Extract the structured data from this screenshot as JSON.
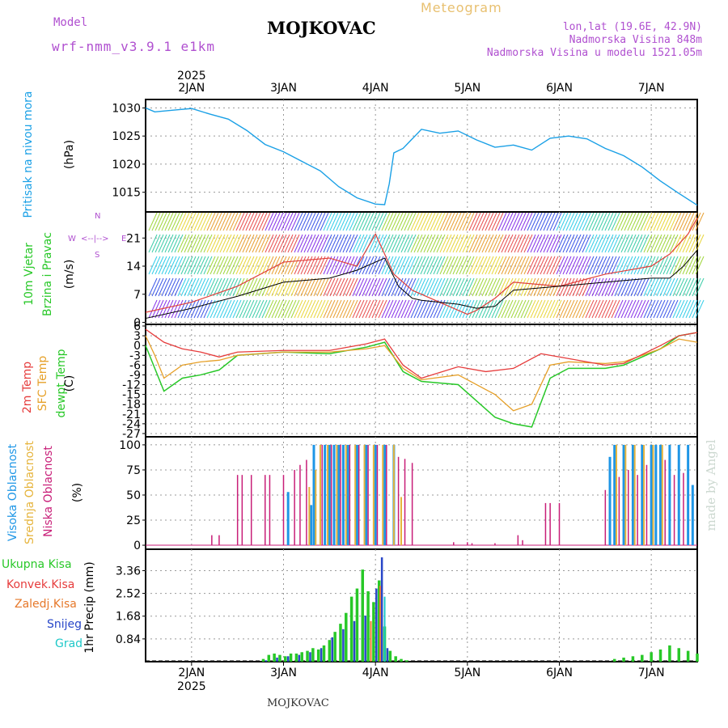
{
  "header": {
    "model_label": "Model",
    "model_name": "wrf-nmm_v3.9.1  e1km",
    "station": "MOJKOVAC",
    "meteogram": "Meteogram",
    "coords": "lon,lat (19.6E, 42.9N)",
    "elevation": "Nadmorska Visina 848m",
    "model_elevation": "Nadmorska Visina u modelu 1521.05m",
    "footer_station": "MOJKOVAC",
    "watermark": "made by Angel"
  },
  "colors": {
    "pressure": "#1aa0e6",
    "temp2m": "#e63c3c",
    "sfc_temp": "#e6a028",
    "dewpoint": "#28c828",
    "cloud_high": "#1e96e6",
    "cloud_mid": "#e6b43c",
    "cloud_low": "#c81e78",
    "total_precip": "#28c828",
    "conv_precip": "#e63c3c",
    "snow": "#2846c8",
    "frozen": "#e6782a",
    "hail": "#1ec8c8",
    "title_purple": "#b050d0"
  },
  "chart_data": [
    {
      "type": "line",
      "panel": "pressure",
      "ylabel_main": "Pritisak na nivou mora",
      "ylabel_unit": "(hPa)",
      "yticks": [
        1015,
        1020,
        1025,
        1030
      ],
      "ylim": [
        1011.5,
        1031.5
      ],
      "xlim": [
        0,
        6
      ],
      "x_ticks": [
        0.5,
        1.5,
        2.5,
        3.5,
        4.5,
        5.5
      ],
      "x_tick_labels": [
        "2JAN",
        "3JAN",
        "4JAN",
        "5JAN",
        "6JAN",
        "7JAN"
      ],
      "top_year_label": "2025",
      "series": [
        {
          "x": [
            0,
            0.1,
            0.3,
            0.5,
            0.7,
            0.9,
            1.1,
            1.3,
            1.5,
            1.7,
            1.9,
            2.1,
            2.3,
            2.5,
            2.6,
            2.65,
            2.7,
            2.8,
            3.0,
            3.2,
            3.4,
            3.6,
            3.8,
            4.0,
            4.2,
            4.4,
            4.6,
            4.8,
            5.0,
            5.2,
            5.4,
            5.6,
            5.8,
            6.0
          ],
          "y": [
            1030,
            1029.3,
            1029.6,
            1029.9,
            1028.9,
            1028.0,
            1026.0,
            1023.5,
            1022.2,
            1020.5,
            1018.8,
            1016.0,
            1014.0,
            1012.9,
            1012.8,
            1016.5,
            1022.0,
            1022.8,
            1026.2,
            1025.5,
            1025.9,
            1024.3,
            1023.0,
            1023.4,
            1022.5,
            1024.6,
            1025.0,
            1024.5,
            1022.8,
            1021.5,
            1019.5,
            1017.0,
            1014.8,
            1012.7
          ]
        }
      ]
    },
    {
      "type": "line",
      "panel": "wind",
      "ylabel_main": "10m Vjetar",
      "ylabel_sub": "Brzina i Pravac",
      "ylabel_unit": "(m/s)",
      "compass_ns": "<--|-->",
      "compass_labels": [
        "W",
        "E",
        "N",
        "S"
      ],
      "yticks": [
        0,
        7,
        14,
        21
      ],
      "ylim": [
        -0.5,
        27.5
      ],
      "xlim": [
        0,
        6
      ],
      "series": [
        {
          "name": "mean",
          "x": [
            0,
            0.5,
            1.0,
            1.5,
            2.0,
            2.3,
            2.6,
            2.75,
            2.9,
            3.0,
            3.4,
            3.6,
            3.8,
            4.0,
            4.5,
            5.0,
            5.5,
            5.7,
            5.85,
            6.0
          ],
          "y": [
            1,
            3.5,
            6.5,
            10,
            11,
            13,
            16,
            9,
            6,
            5.5,
            4.5,
            3.5,
            4,
            8,
            9,
            10,
            11,
            11,
            14,
            18
          ]
        },
        {
          "name": "gust",
          "x": [
            0,
            0.5,
            1.0,
            1.5,
            2.0,
            2.3,
            2.5,
            2.7,
            2.9,
            3.0,
            3.3,
            3.5,
            3.6,
            3.8,
            4.0,
            4.5,
            5.0,
            5.5,
            5.7,
            5.9,
            6.0
          ],
          "y": [
            2.5,
            5,
            9,
            15,
            16,
            14,
            22,
            12,
            8,
            7,
            4,
            2,
            3,
            6,
            10,
            9,
            12,
            14,
            17,
            22,
            26
          ]
        }
      ]
    },
    {
      "type": "line",
      "panel": "temperature",
      "ylabel_lines": [
        "2m Temp",
        "SFC Temp",
        "dewpt Temp",
        "(C)"
      ],
      "yticks": [
        -27,
        -24,
        -21,
        -18,
        -15,
        -12,
        -9,
        -6,
        -3,
        0,
        3,
        6
      ],
      "ylim": [
        -28,
        6.5
      ],
      "xlim": [
        0,
        6
      ],
      "series": [
        {
          "name": "2m Temp",
          "x": [
            0,
            0.2,
            0.4,
            0.6,
            0.8,
            1.0,
            1.5,
            2.0,
            2.4,
            2.6,
            2.8,
            3.0,
            3.4,
            3.7,
            4.0,
            4.3,
            4.5,
            5.0,
            5.2,
            5.6,
            5.8,
            6.0
          ],
          "y": [
            5,
            1,
            -1,
            -2,
            -3.5,
            -2,
            -1.5,
            -1.5,
            0.5,
            2,
            -6,
            -10,
            -6.5,
            -8,
            -7,
            -2.5,
            -3.5,
            -6,
            -5.5,
            0,
            3,
            4
          ]
        },
        {
          "name": "SFC Temp",
          "x": [
            0,
            0.1,
            0.2,
            0.4,
            0.6,
            0.8,
            1.0,
            1.5,
            2.0,
            2.4,
            2.6,
            2.8,
            3.0,
            3.4,
            3.6,
            3.8,
            4.0,
            4.2,
            4.4,
            4.6,
            5.0,
            5.2,
            5.6,
            5.8,
            6.0
          ],
          "y": [
            3,
            -3,
            -10,
            -6,
            -5,
            -4.5,
            -3,
            -2,
            -2,
            -1,
            0,
            -7,
            -10.5,
            -9,
            -12,
            -15,
            -20,
            -18,
            -6,
            -5,
            -5.5,
            -5,
            -1,
            2,
            1
          ]
        },
        {
          "name": "dewpt Temp",
          "x": [
            0,
            0.1,
            0.2,
            0.4,
            0.6,
            0.8,
            1.0,
            1.5,
            2.0,
            2.4,
            2.6,
            2.8,
            3.0,
            3.4,
            3.6,
            3.8,
            4.0,
            4.2,
            4.4,
            4.6,
            5.0,
            5.2,
            5.6,
            5.8,
            6.0
          ],
          "y": [
            0,
            -7,
            -14,
            -10,
            -9,
            -7.5,
            -3,
            -2,
            -2.5,
            -0.5,
            1,
            -8,
            -11,
            -12,
            -17,
            -22,
            -24,
            -25,
            -10,
            -7,
            -7,
            -6,
            -1,
            3,
            4
          ]
        }
      ]
    },
    {
      "type": "bar",
      "panel": "clouds",
      "ylabel_lines": [
        "Visoka Oblacnost",
        "Srednja Oblacnost",
        "Niska Oblacnost",
        "(%)"
      ],
      "yticks": [
        0,
        25,
        50,
        75,
        100
      ],
      "ylim": [
        -4,
        108
      ],
      "xlim": [
        0,
        6
      ],
      "high": {
        "x": [
          1.55,
          1.8,
          1.83,
          1.95,
          2.0,
          2.05,
          2.1,
          2.15,
          2.2,
          2.3,
          2.4,
          2.5,
          2.6,
          2.7,
          5.05,
          5.1,
          5.2,
          5.3,
          5.4,
          5.5,
          5.55,
          5.6,
          5.7,
          5.8,
          5.9,
          5.95
        ],
        "y": [
          53,
          40,
          100,
          100,
          100,
          100,
          100,
          100,
          100,
          100,
          100,
          100,
          100,
          100,
          88,
          100,
          100,
          100,
          100,
          100,
          100,
          100,
          100,
          100,
          100,
          60
        ]
      },
      "mid": {
        "x": [
          1.78,
          1.85,
          1.9,
          1.98,
          2.08,
          2.18,
          2.28,
          2.38,
          2.48,
          2.58,
          2.7,
          2.78,
          5.12,
          5.22,
          5.32,
          5.42,
          5.52,
          5.62
        ],
        "y": [
          58,
          75,
          100,
          100,
          100,
          100,
          100,
          100,
          100,
          100,
          100,
          48,
          100,
          100,
          100,
          100,
          100,
          100
        ]
      },
      "low": {
        "x": [
          0.72,
          0.8,
          1.0,
          1.05,
          1.15,
          1.3,
          1.35,
          1.5,
          1.62,
          1.68,
          1.75,
          1.92,
          2.02,
          2.12,
          2.22,
          2.32,
          2.42,
          2.52,
          2.62,
          2.75,
          2.82,
          2.9,
          3.35,
          3.5,
          3.55,
          3.8,
          4.05,
          4.1,
          4.35,
          4.4,
          4.5,
          5.0,
          5.15,
          5.25,
          5.35,
          5.45,
          5.65,
          5.75,
          5.85
        ],
        "y": [
          10,
          10,
          70,
          70,
          70,
          70,
          70,
          70,
          75,
          80,
          85,
          100,
          100,
          100,
          100,
          100,
          100,
          100,
          100,
          88,
          86,
          82,
          3,
          3,
          2,
          2,
          10,
          5,
          42,
          42,
          42,
          55,
          68,
          75,
          70,
          80,
          85,
          70,
          72
        ]
      }
    },
    {
      "type": "bar",
      "panel": "precip",
      "ylabel_unit": "1hr Precip (mm)",
      "legend": [
        "Ukupna  Kisa",
        "Konvek.Kisa",
        "Zaledj.Kisa",
        "Snijeg",
        "Grad"
      ],
      "yticks": [
        0.84,
        1.68,
        2.52,
        3.36
      ],
      "ytick_labels": [
        "0.84",
        "1.68",
        "2.52",
        "3.36"
      ],
      "ylim": [
        0,
        4.15
      ],
      "xlim": [
        0,
        6
      ],
      "total": {
        "x": [
          1.28,
          1.34,
          1.4,
          1.46,
          1.52,
          1.58,
          1.64,
          1.7,
          1.76,
          1.82,
          1.88,
          1.94,
          2.0,
          2.06,
          2.12,
          2.18,
          2.24,
          2.3,
          2.36,
          2.42,
          2.48,
          2.54,
          2.6,
          2.66,
          2.72,
          2.78,
          2.84,
          5.1,
          5.2,
          5.3,
          5.4,
          5.5,
          5.6,
          5.7,
          5.8,
          5.9,
          6.0
        ],
        "y": [
          0.1,
          0.25,
          0.3,
          0.25,
          0.2,
          0.3,
          0.3,
          0.35,
          0.4,
          0.5,
          0.45,
          0.6,
          0.8,
          1.1,
          1.4,
          1.8,
          2.4,
          2.7,
          3.4,
          2.6,
          2.2,
          3.0,
          1.3,
          0.4,
          0.2,
          0.1,
          0.05,
          0.1,
          0.15,
          0.2,
          0.25,
          0.35,
          0.45,
          0.6,
          0.5,
          0.4,
          0.3
        ]
      },
      "snow": {
        "x": [
          1.31,
          1.43,
          1.55,
          1.67,
          1.79,
          1.91,
          2.03,
          2.15,
          2.27,
          2.39,
          2.51,
          2.57,
          2.63
        ],
        "y": [
          0.05,
          0.15,
          0.2,
          0.25,
          0.35,
          0.5,
          0.9,
          1.2,
          1.5,
          1.7,
          2.7,
          3.85,
          0.5
        ]
      },
      "frozen": {
        "x": [
          2.45,
          2.55
        ],
        "y": [
          1.5,
          2.8
        ]
      },
      "hail": {
        "x": [
          2.6
        ],
        "y": [
          2.4
        ]
      }
    }
  ]
}
